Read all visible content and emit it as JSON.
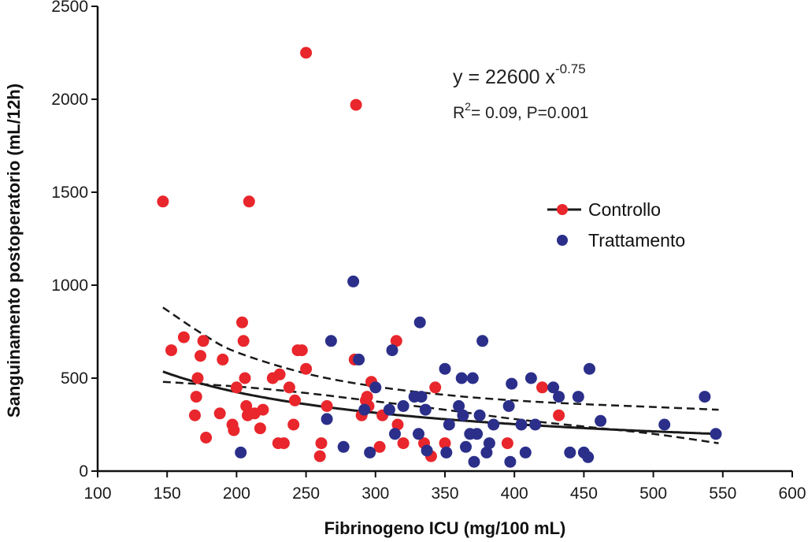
{
  "chart_data": {
    "type": "scatter",
    "title": "",
    "xlabel": "Fibrinogeno ICU (mg/100 mL)",
    "ylabel": "Sanguinamento postoperatorio (mL/12h)",
    "xlim": [
      100,
      600
    ],
    "ylim": [
      0,
      2500
    ],
    "x_ticks": [
      100,
      150,
      200,
      250,
      300,
      350,
      400,
      450,
      500,
      550,
      600
    ],
    "y_ticks": [
      0,
      500,
      1000,
      1500,
      2000,
      2500
    ],
    "x_tick_labels": [
      "100",
      "150",
      "200",
      "250",
      "300",
      "350",
      "400",
      "450",
      "500",
      "550",
      "600"
    ],
    "y_tick_labels": [
      "0",
      "500",
      "1000",
      "1500",
      "2000",
      "2500"
    ],
    "grid": false,
    "legend_position": "right",
    "colors": {
      "Controllo": "#e8262c",
      "Trattamento": "#2b2f8a",
      "fit": "#1a1a1a"
    },
    "annotation": {
      "equation_prefix": "y = 22600 x",
      "equation_exponent": "-0.75",
      "r2_R": "R",
      "r2_sup": "2",
      "r2_rest": "= 0.09, P=0.001"
    },
    "fit": {
      "model": "power",
      "a": 22600,
      "b": -0.75,
      "x_range": [
        147,
        547
      ],
      "ci_upper": [
        [
          147,
          880
        ],
        [
          175,
          740
        ],
        [
          200,
          640
        ],
        [
          250,
          525
        ],
        [
          300,
          455
        ],
        [
          350,
          410
        ],
        [
          400,
          380
        ],
        [
          450,
          360
        ],
        [
          500,
          345
        ],
        [
          547,
          330
        ]
      ],
      "ci_lower": [
        [
          147,
          480
        ],
        [
          200,
          455
        ],
        [
          250,
          420
        ],
        [
          300,
          375
        ],
        [
          350,
          330
        ],
        [
          400,
          280
        ],
        [
          450,
          240
        ],
        [
          500,
          200
        ],
        [
          547,
          150
        ]
      ]
    },
    "series": [
      {
        "name": "Controllo",
        "points": [
          [
            147,
            1450
          ],
          [
            153,
            650
          ],
          [
            162,
            720
          ],
          [
            170,
            300
          ],
          [
            171,
            400
          ],
          [
            172,
            500
          ],
          [
            174,
            620
          ],
          [
            176,
            700
          ],
          [
            178,
            180
          ],
          [
            188,
            310
          ],
          [
            190,
            600
          ],
          [
            197,
            250
          ],
          [
            198,
            220
          ],
          [
            200,
            450
          ],
          [
            204,
            800
          ],
          [
            205,
            700
          ],
          [
            206,
            500
          ],
          [
            207,
            350
          ],
          [
            208,
            300
          ],
          [
            209,
            1450
          ],
          [
            213,
            310
          ],
          [
            217,
            230
          ],
          [
            219,
            330
          ],
          [
            226,
            500
          ],
          [
            230,
            150
          ],
          [
            231,
            520
          ],
          [
            234,
            150
          ],
          [
            238,
            450
          ],
          [
            241,
            250
          ],
          [
            242,
            380
          ],
          [
            244,
            650
          ],
          [
            247,
            650
          ],
          [
            250,
            2250
          ],
          [
            250,
            550
          ],
          [
            260,
            80
          ],
          [
            261,
            150
          ],
          [
            265,
            350
          ],
          [
            285,
            600
          ],
          [
            286,
            1970
          ],
          [
            290,
            300
          ],
          [
            293,
            380
          ],
          [
            294,
            400
          ],
          [
            295,
            350
          ],
          [
            297,
            480
          ],
          [
            303,
            130
          ],
          [
            305,
            300
          ],
          [
            315,
            700
          ],
          [
            316,
            250
          ],
          [
            320,
            150
          ],
          [
            335,
            150
          ],
          [
            340,
            80
          ],
          [
            343,
            450
          ],
          [
            350,
            150
          ],
          [
            395,
            150
          ],
          [
            420,
            450
          ],
          [
            432,
            300
          ]
        ]
      },
      {
        "name": "Trattamento",
        "points": [
          [
            203,
            100
          ],
          [
            265,
            280
          ],
          [
            268,
            700
          ],
          [
            277,
            130
          ],
          [
            284,
            1020
          ],
          [
            288,
            600
          ],
          [
            292,
            330
          ],
          [
            296,
            100
          ],
          [
            300,
            450
          ],
          [
            310,
            330
          ],
          [
            312,
            650
          ],
          [
            314,
            200
          ],
          [
            320,
            350
          ],
          [
            328,
            400
          ],
          [
            331,
            200
          ],
          [
            332,
            800
          ],
          [
            333,
            400
          ],
          [
            336,
            330
          ],
          [
            337,
            110
          ],
          [
            350,
            550
          ],
          [
            351,
            100
          ],
          [
            353,
            250
          ],
          [
            360,
            350
          ],
          [
            362,
            500
          ],
          [
            363,
            300
          ],
          [
            365,
            130
          ],
          [
            368,
            200
          ],
          [
            370,
            500
          ],
          [
            371,
            50
          ],
          [
            373,
            200
          ],
          [
            375,
            300
          ],
          [
            377,
            700
          ],
          [
            380,
            100
          ],
          [
            382,
            150
          ],
          [
            385,
            250
          ],
          [
            396,
            350
          ],
          [
            397,
            50
          ],
          [
            398,
            470
          ],
          [
            405,
            250
          ],
          [
            408,
            100
          ],
          [
            412,
            500
          ],
          [
            415,
            250
          ],
          [
            428,
            450
          ],
          [
            432,
            400
          ],
          [
            440,
            100
          ],
          [
            446,
            400
          ],
          [
            450,
            100
          ],
          [
            453,
            75
          ],
          [
            454,
            550
          ],
          [
            462,
            270
          ],
          [
            508,
            250
          ],
          [
            537,
            400
          ],
          [
            545,
            200
          ]
        ]
      }
    ]
  }
}
